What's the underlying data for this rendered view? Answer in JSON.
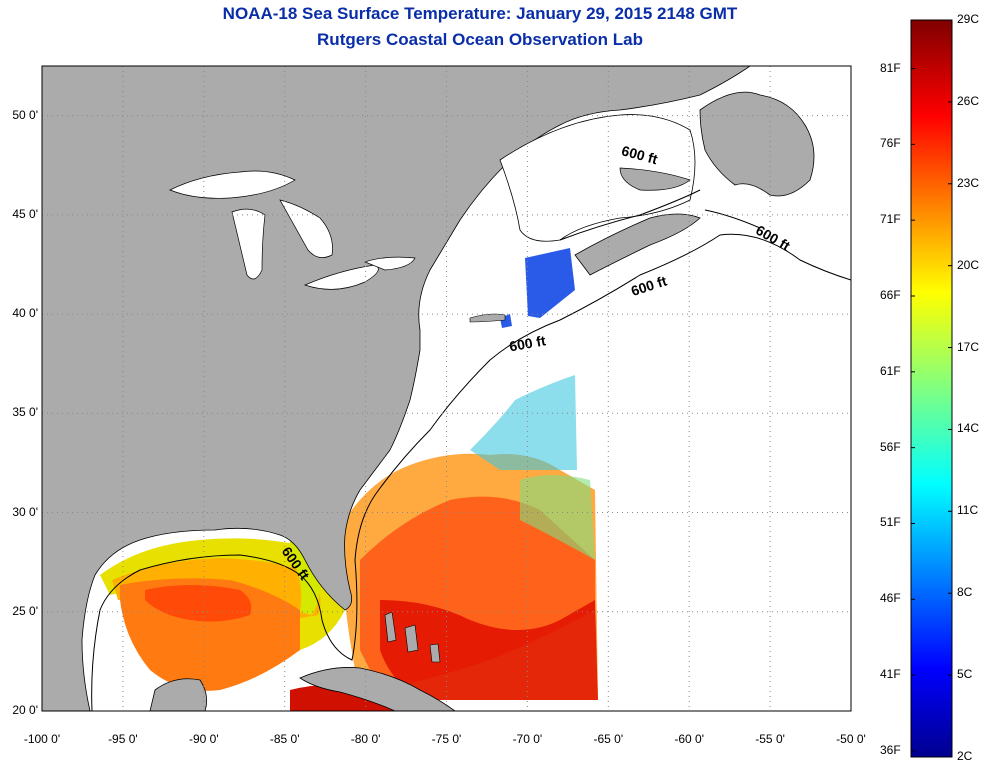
{
  "title": "NOAA-18 Sea Surface Temperature:  January 29, 2015 2148 GMT",
  "subtitle": "Rutgers Coastal Ocean Observation Lab",
  "map": {
    "lat_ticks": [
      "50 0'",
      "45 0'",
      "40 0'",
      "35 0'",
      "30 0'",
      "25 0'",
      "20 0'"
    ],
    "lon_ticks": [
      "-100 0'",
      "-95 0'",
      "-90 0'",
      "-85 0'",
      "-80 0'",
      "-75 0'",
      "-70 0'",
      "-65 0'",
      "-60 0'",
      "-55 0'",
      "-50 0'"
    ],
    "lat_range": [
      20,
      52.5
    ],
    "lon_range": [
      -100,
      -50
    ],
    "grid": "dotted",
    "contour_label": "600 ft",
    "colors": {
      "land": "#ababab",
      "water_nodata": "#ffffff",
      "grid": "#888888"
    }
  },
  "colorbar": {
    "min_c": 2,
    "max_c": 29,
    "celsius_labels": [
      "29C",
      "26C",
      "23C",
      "20C",
      "17C",
      "14C",
      "11C",
      "8C",
      "5C",
      "2C"
    ],
    "fahrenheit_labels": [
      "81F",
      "76F",
      "71F",
      "66F",
      "61F",
      "56F",
      "51F",
      "46F",
      "41F",
      "36F"
    ],
    "colormap": "jet"
  }
}
